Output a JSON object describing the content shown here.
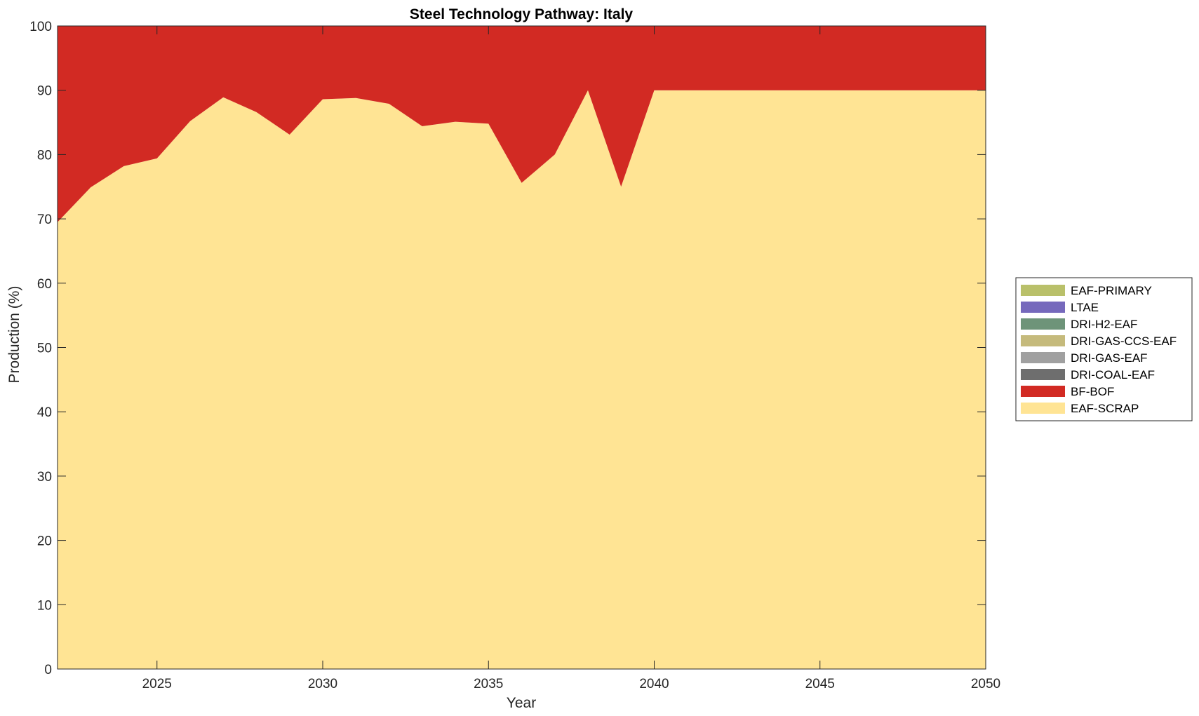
{
  "chart_data": {
    "type": "area",
    "stacked": true,
    "title": "Steel Technology Pathway: Italy",
    "xlabel": "Year",
    "ylabel": "Production (%)",
    "xlim": [
      2022,
      2050
    ],
    "ylim": [
      0,
      100
    ],
    "xticks": [
      2025,
      2030,
      2035,
      2040,
      2045,
      2050
    ],
    "yticks": [
      0,
      10,
      20,
      30,
      40,
      50,
      60,
      70,
      80,
      90,
      100
    ],
    "grid": false,
    "legend_position": "right",
    "x": [
      2022,
      2023,
      2024,
      2025,
      2026,
      2027,
      2028,
      2029,
      2030,
      2031,
      2032,
      2033,
      2034,
      2035,
      2036,
      2037,
      2038,
      2039,
      2040,
      2041,
      2042,
      2043,
      2044,
      2045,
      2046,
      2047,
      2048,
      2049,
      2050
    ],
    "series": [
      {
        "name": "EAF-SCRAP",
        "color": "#FFE494",
        "values": [
          69.5,
          74.9,
          78.2,
          79.4,
          85.2,
          88.9,
          86.6,
          83.1,
          88.6,
          88.8,
          87.9,
          84.4,
          85.1,
          84.8,
          75.6,
          80.0,
          90.0,
          75.0,
          90.0,
          90.0,
          90.0,
          90.0,
          90.0,
          90.0,
          90.0,
          90.0,
          90.0,
          90.0,
          90.0
        ]
      },
      {
        "name": "BF-BOF",
        "color": "#D22A23",
        "values": [
          30.5,
          25.1,
          21.8,
          20.6,
          14.8,
          11.1,
          13.4,
          16.9,
          11.4,
          11.2,
          12.1,
          15.6,
          14.9,
          15.2,
          24.4,
          20.0,
          10.0,
          25.0,
          10.0,
          10.0,
          10.0,
          10.0,
          10.0,
          10.0,
          10.0,
          10.0,
          10.0,
          10.0,
          10.0
        ]
      },
      {
        "name": "DRI-COAL-EAF",
        "color": "#6E6E6E",
        "values": [
          0,
          0,
          0,
          0,
          0,
          0,
          0,
          0,
          0,
          0,
          0,
          0,
          0,
          0,
          0,
          0,
          0,
          0,
          0,
          0,
          0,
          0,
          0,
          0,
          0,
          0,
          0,
          0,
          0
        ]
      },
      {
        "name": "DRI-GAS-EAF",
        "color": "#A0A0A0",
        "values": [
          0,
          0,
          0,
          0,
          0,
          0,
          0,
          0,
          0,
          0,
          0,
          0,
          0,
          0,
          0,
          0,
          0,
          0,
          0,
          0,
          0,
          0,
          0,
          0,
          0,
          0,
          0,
          0,
          0
        ]
      },
      {
        "name": "DRI-GAS-CCS-EAF",
        "color": "#C5BA7C",
        "values": [
          0,
          0,
          0,
          0,
          0,
          0,
          0,
          0,
          0,
          0,
          0,
          0,
          0,
          0,
          0,
          0,
          0,
          0,
          0,
          0,
          0,
          0,
          0,
          0,
          0,
          0,
          0,
          0,
          0
        ]
      },
      {
        "name": "DRI-H2-EAF",
        "color": "#6E9479",
        "values": [
          0,
          0,
          0,
          0,
          0,
          0,
          0,
          0,
          0,
          0,
          0,
          0,
          0,
          0,
          0,
          0,
          0,
          0,
          0,
          0,
          0,
          0,
          0,
          0,
          0,
          0,
          0,
          0,
          0
        ]
      },
      {
        "name": "LTAE",
        "color": "#7669BC",
        "values": [
          0,
          0,
          0,
          0,
          0,
          0,
          0,
          0,
          0,
          0,
          0,
          0,
          0,
          0,
          0,
          0,
          0,
          0,
          0,
          0,
          0,
          0,
          0,
          0,
          0,
          0,
          0,
          0,
          0
        ]
      },
      {
        "name": "EAF-PRIMARY",
        "color": "#B9C06A",
        "values": [
          0,
          0,
          0,
          0,
          0,
          0,
          0,
          0,
          0,
          0,
          0,
          0,
          0,
          0,
          0,
          0,
          0,
          0,
          0,
          0,
          0,
          0,
          0,
          0,
          0,
          0,
          0,
          0,
          0
        ]
      }
    ],
    "legend_order": [
      "EAF-PRIMARY",
      "LTAE",
      "DRI-H2-EAF",
      "DRI-GAS-CCS-EAF",
      "DRI-GAS-EAF",
      "DRI-COAL-EAF",
      "BF-BOF",
      "EAF-SCRAP"
    ]
  }
}
